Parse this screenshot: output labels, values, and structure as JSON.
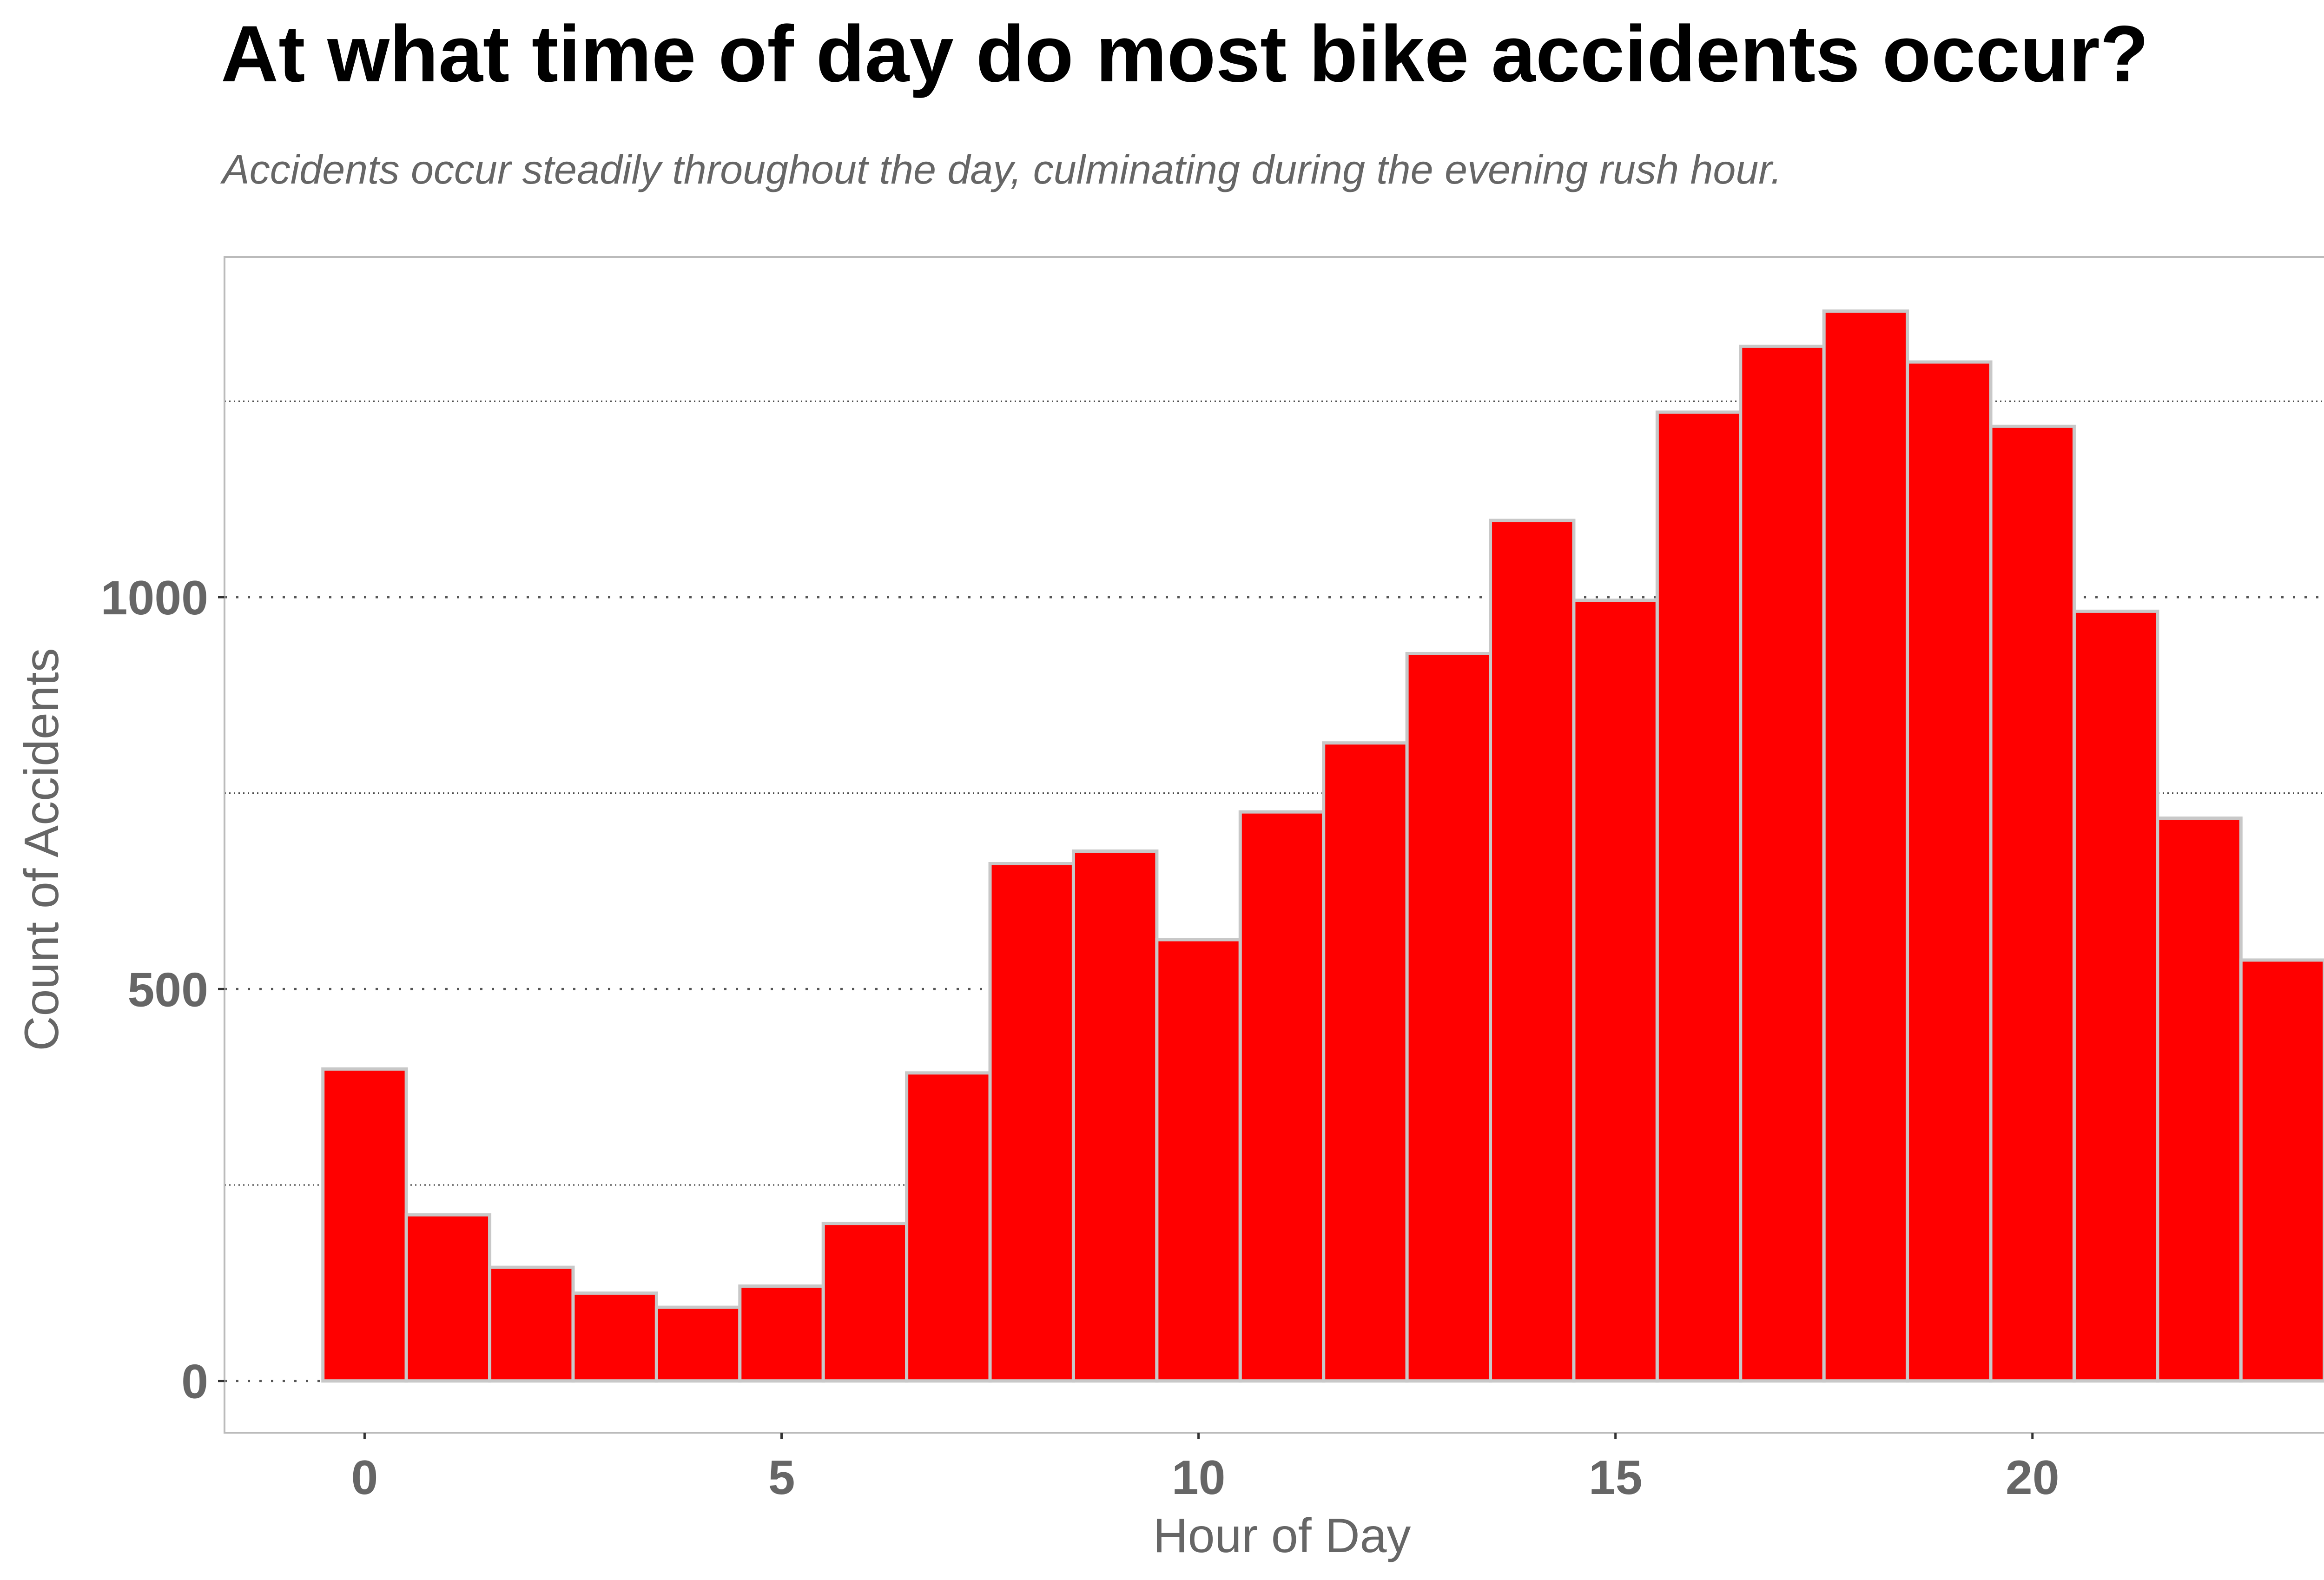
{
  "chart_data": {
    "type": "bar",
    "title": "At what time of day do most bike accidents occur?",
    "subtitle": "Accidents occur steadily throughout the day, culminating during the evening rush hour.",
    "xlabel": "Hour of Day",
    "ylabel": "Count of Accidents",
    "x": [
      0,
      1,
      2,
      3,
      4,
      5,
      6,
      7,
      8,
      9,
      10,
      11,
      12,
      13,
      14,
      15,
      16,
      17,
      18,
      19,
      20,
      21,
      22,
      23
    ],
    "values": [
      398,
      212,
      145,
      112,
      94,
      121,
      201,
      393,
      660,
      676,
      563,
      726,
      814,
      928,
      1098,
      996,
      1236,
      1320,
      1365,
      1300,
      1218,
      982,
      718,
      537
    ],
    "xlim": [
      -1.68,
      23.68
    ],
    "ylim": [
      -66,
      1434
    ],
    "xticks": [
      0,
      5,
      10,
      15,
      20
    ],
    "xtick_labels": [
      "0",
      "5",
      "10",
      "15",
      "20"
    ],
    "yticks": [
      0,
      500,
      1000
    ],
    "ytick_labels": [
      "0",
      "500",
      "1000"
    ],
    "yticks_minor": [
      250,
      750,
      1250
    ],
    "grid": "horizontal dotted",
    "legend": "none",
    "colors": {
      "bar_fill": "#ff0000",
      "bar_outline": "#c8c8c8",
      "axis_text": "#666666",
      "panel_border": "#bbbbbb"
    }
  }
}
